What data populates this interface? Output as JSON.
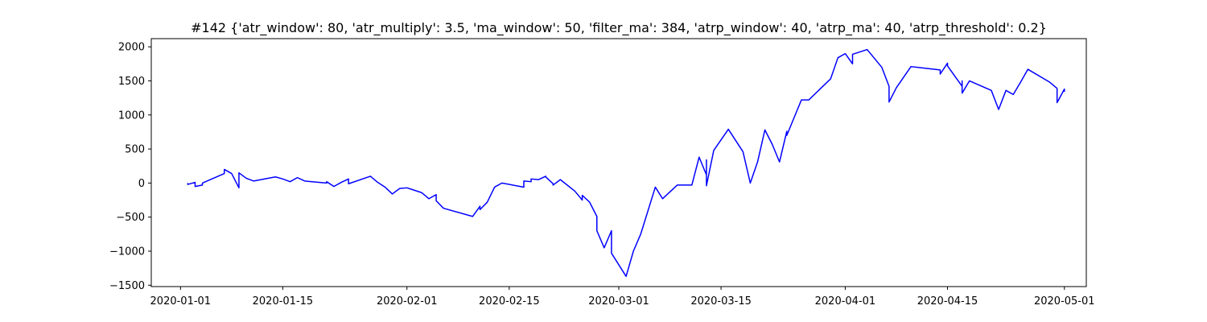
{
  "chart_data": {
    "type": "line",
    "title": "#142 {'atr_window': 80, 'atr_multiply': 3.5, 'ma_window': 50, 'filter_ma': 384, 'atrp_window': 40, 'atrp_ma': 40, 'atrp_threshold': 0.2}",
    "xlabel": "",
    "ylabel": "",
    "xlim": [
      "2019-12-28",
      "2020-05-04"
    ],
    "ylim": [
      -1520,
      2120
    ],
    "x_ticks": [
      "2020-01-01",
      "2020-01-15",
      "2020-02-01",
      "2020-02-15",
      "2020-03-01",
      "2020-03-15",
      "2020-04-01",
      "2020-04-15",
      "2020-05-01"
    ],
    "y_ticks": [
      -1500,
      -1000,
      -500,
      0,
      500,
      1000,
      1500,
      2000
    ],
    "y_tick_labels": [
      "−1500",
      "−1000",
      "−500",
      "0",
      "500",
      "1000",
      "1500",
      "2000"
    ],
    "grid": false,
    "legend": "none",
    "series": [
      {
        "color": "#0000ff",
        "points": [
          [
            "2020-01-02",
            0
          ],
          [
            "2020-01-02",
            -20
          ],
          [
            "2020-01-03",
            10
          ],
          [
            "2020-01-03",
            -50
          ],
          [
            "2020-01-04",
            -30
          ],
          [
            "2020-01-04",
            0
          ],
          [
            "2020-01-07",
            140
          ],
          [
            "2020-01-07",
            200
          ],
          [
            "2020-01-08",
            140
          ],
          [
            "2020-01-09",
            -70
          ],
          [
            "2020-01-09",
            150
          ],
          [
            "2020-01-10",
            70
          ],
          [
            "2020-01-11",
            30
          ],
          [
            "2020-01-14",
            90
          ],
          [
            "2020-01-15",
            60
          ],
          [
            "2020-01-16",
            20
          ],
          [
            "2020-01-17",
            80
          ],
          [
            "2020-01-18",
            30
          ],
          [
            "2020-01-21",
            0
          ],
          [
            "2020-01-21",
            20
          ],
          [
            "2020-01-22",
            -50
          ],
          [
            "2020-01-23",
            10
          ],
          [
            "2020-01-24",
            60
          ],
          [
            "2020-01-24",
            -10
          ],
          [
            "2020-01-27",
            100
          ],
          [
            "2020-01-28",
            10
          ],
          [
            "2020-01-29",
            -60
          ],
          [
            "2020-01-30",
            -160
          ],
          [
            "2020-01-31",
            -80
          ],
          [
            "2020-02-01",
            -70
          ],
          [
            "2020-02-03",
            -140
          ],
          [
            "2020-02-04",
            -230
          ],
          [
            "2020-02-05",
            -170
          ],
          [
            "2020-02-05",
            -260
          ],
          [
            "2020-02-06",
            -370
          ],
          [
            "2020-02-10",
            -490
          ],
          [
            "2020-02-11",
            -340
          ],
          [
            "2020-02-11",
            -390
          ],
          [
            "2020-02-12",
            -280
          ],
          [
            "2020-02-13",
            -60
          ],
          [
            "2020-02-14",
            0
          ],
          [
            "2020-02-17",
            -60
          ],
          [
            "2020-02-17",
            30
          ],
          [
            "2020-02-18",
            20
          ],
          [
            "2020-02-18",
            60
          ],
          [
            "2020-02-19",
            50
          ],
          [
            "2020-02-20",
            100
          ],
          [
            "2020-02-20",
            90
          ],
          [
            "2020-02-21",
            -10
          ],
          [
            "2020-02-21",
            -30
          ],
          [
            "2020-02-22",
            50
          ],
          [
            "2020-02-24",
            -120
          ],
          [
            "2020-02-25",
            -250
          ],
          [
            "2020-02-25",
            -180
          ],
          [
            "2020-02-26",
            -280
          ],
          [
            "2020-02-27",
            -490
          ],
          [
            "2020-02-27",
            -700
          ],
          [
            "2020-02-28",
            -950
          ],
          [
            "2020-02-29",
            -700
          ],
          [
            "2020-02-29",
            -1030
          ],
          [
            "2020-03-02",
            -1370
          ],
          [
            "2020-03-03",
            -1000
          ],
          [
            "2020-03-04",
            -750
          ],
          [
            "2020-03-06",
            -60
          ],
          [
            "2020-03-07",
            -230
          ],
          [
            "2020-03-09",
            -30
          ],
          [
            "2020-03-11",
            -30
          ],
          [
            "2020-03-12",
            380
          ],
          [
            "2020-03-13",
            120
          ],
          [
            "2020-03-13",
            340
          ],
          [
            "2020-03-13",
            -40
          ],
          [
            "2020-03-14",
            480
          ],
          [
            "2020-03-16",
            790
          ],
          [
            "2020-03-18",
            460
          ],
          [
            "2020-03-19",
            0
          ],
          [
            "2020-03-20",
            310
          ],
          [
            "2020-03-21",
            780
          ],
          [
            "2020-03-22",
            570
          ],
          [
            "2020-03-23",
            310
          ],
          [
            "2020-03-24",
            760
          ],
          [
            "2020-03-24",
            700
          ],
          [
            "2020-03-26",
            1220
          ],
          [
            "2020-03-27",
            1220
          ],
          [
            "2020-03-30",
            1530
          ],
          [
            "2020-03-31",
            1840
          ],
          [
            "2020-04-01",
            1900
          ],
          [
            "2020-04-02",
            1750
          ],
          [
            "2020-04-02",
            1890
          ],
          [
            "2020-04-04",
            1960
          ],
          [
            "2020-04-06",
            1700
          ],
          [
            "2020-04-07",
            1420
          ],
          [
            "2020-04-07",
            1190
          ],
          [
            "2020-04-08",
            1400
          ],
          [
            "2020-04-10",
            1710
          ],
          [
            "2020-04-14",
            1660
          ],
          [
            "2020-04-14",
            1600
          ],
          [
            "2020-04-15",
            1760
          ],
          [
            "2020-04-15",
            1720
          ],
          [
            "2020-04-16",
            1570
          ],
          [
            "2020-04-17",
            1420
          ],
          [
            "2020-04-17",
            1500
          ],
          [
            "2020-04-17",
            1320
          ],
          [
            "2020-04-18",
            1500
          ],
          [
            "2020-04-21",
            1360
          ],
          [
            "2020-04-22",
            1080
          ],
          [
            "2020-04-23",
            1360
          ],
          [
            "2020-04-24",
            1300
          ],
          [
            "2020-04-25",
            1480
          ],
          [
            "2020-04-26",
            1670
          ],
          [
            "2020-04-29",
            1480
          ],
          [
            "2020-04-30",
            1390
          ],
          [
            "2020-04-30",
            1180
          ],
          [
            "2020-05-01",
            1380
          ],
          [
            "2020-05-01",
            1340
          ]
        ]
      }
    ]
  }
}
